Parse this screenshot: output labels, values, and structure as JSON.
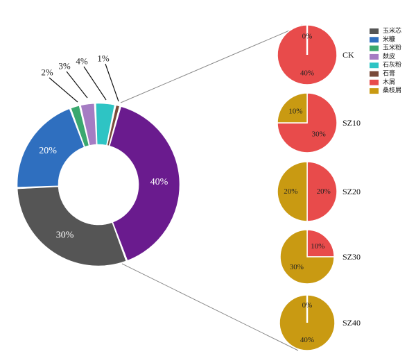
{
  "chart_data": {
    "type": "pie",
    "legend_position": "top-right",
    "legend": [
      {
        "name": "玉米芯",
        "color": "#555555"
      },
      {
        "name": "米糠",
        "color": "#2f6fbf"
      },
      {
        "name": "玉米粉",
        "color": "#3aa86f"
      },
      {
        "name": "麸皮",
        "color": "#a57cc3"
      },
      {
        "name": "石灰粉",
        "color": "#2ec4c4"
      },
      {
        "name": "石膏",
        "color": "#7a4a3a"
      },
      {
        "name": "木屑",
        "color": "#e84b4b"
      },
      {
        "name": "桑枝屑",
        "color": "#c99a12"
      }
    ],
    "main_donut": {
      "slices": [
        {
          "name": "石膏",
          "value": 1,
          "label": "1%",
          "color": "#7a4a3a"
        },
        {
          "name": "木屑/桑枝屑",
          "value": 40,
          "label": "40%",
          "color": "#6a1b8e"
        },
        {
          "name": "玉米芯",
          "value": 30,
          "label": "30%",
          "color": "#555555"
        },
        {
          "name": "米糠",
          "value": 20,
          "label": "20%",
          "color": "#2f6fbf"
        },
        {
          "name": "玉米粉",
          "value": 2,
          "label": "2%",
          "color": "#3aa86f"
        },
        {
          "name": "麸皮",
          "value": 3,
          "label": "3%",
          "color": "#a57cc3"
        },
        {
          "name": "石灰粉",
          "value": 4,
          "label": "4%",
          "color": "#2ec4c4"
        }
      ]
    },
    "sub_pies": [
      {
        "name": "CK",
        "slices": [
          {
            "name": "木屑",
            "value": 40,
            "label": "40%",
            "color": "#e84b4b"
          },
          {
            "name": "桑枝屑",
            "value": 0,
            "label": "0%",
            "color": "#c99a12"
          }
        ]
      },
      {
        "name": "SZ10",
        "slices": [
          {
            "name": "木屑",
            "value": 30,
            "label": "30%",
            "color": "#e84b4b"
          },
          {
            "name": "桑枝屑",
            "value": 10,
            "label": "10%",
            "color": "#c99a12"
          }
        ]
      },
      {
        "name": "SZ20",
        "slices": [
          {
            "name": "木屑",
            "value": 20,
            "label": "20%",
            "color": "#e84b4b"
          },
          {
            "name": "桑枝屑",
            "value": 20,
            "label": "20%",
            "color": "#c99a12"
          }
        ]
      },
      {
        "name": "SZ30",
        "slices": [
          {
            "name": "木屑",
            "value": 10,
            "label": "10%",
            "color": "#e84b4b"
          },
          {
            "name": "桑枝屑",
            "value": 30,
            "label": "30%",
            "color": "#c99a12"
          }
        ]
      },
      {
        "name": "SZ40",
        "slices": [
          {
            "name": "木屑",
            "value": 0,
            "label": "0%",
            "color": "#e84b4b"
          },
          {
            "name": "桑枝屑",
            "value": 40,
            "label": "40%",
            "color": "#c99a12"
          }
        ]
      }
    ]
  }
}
